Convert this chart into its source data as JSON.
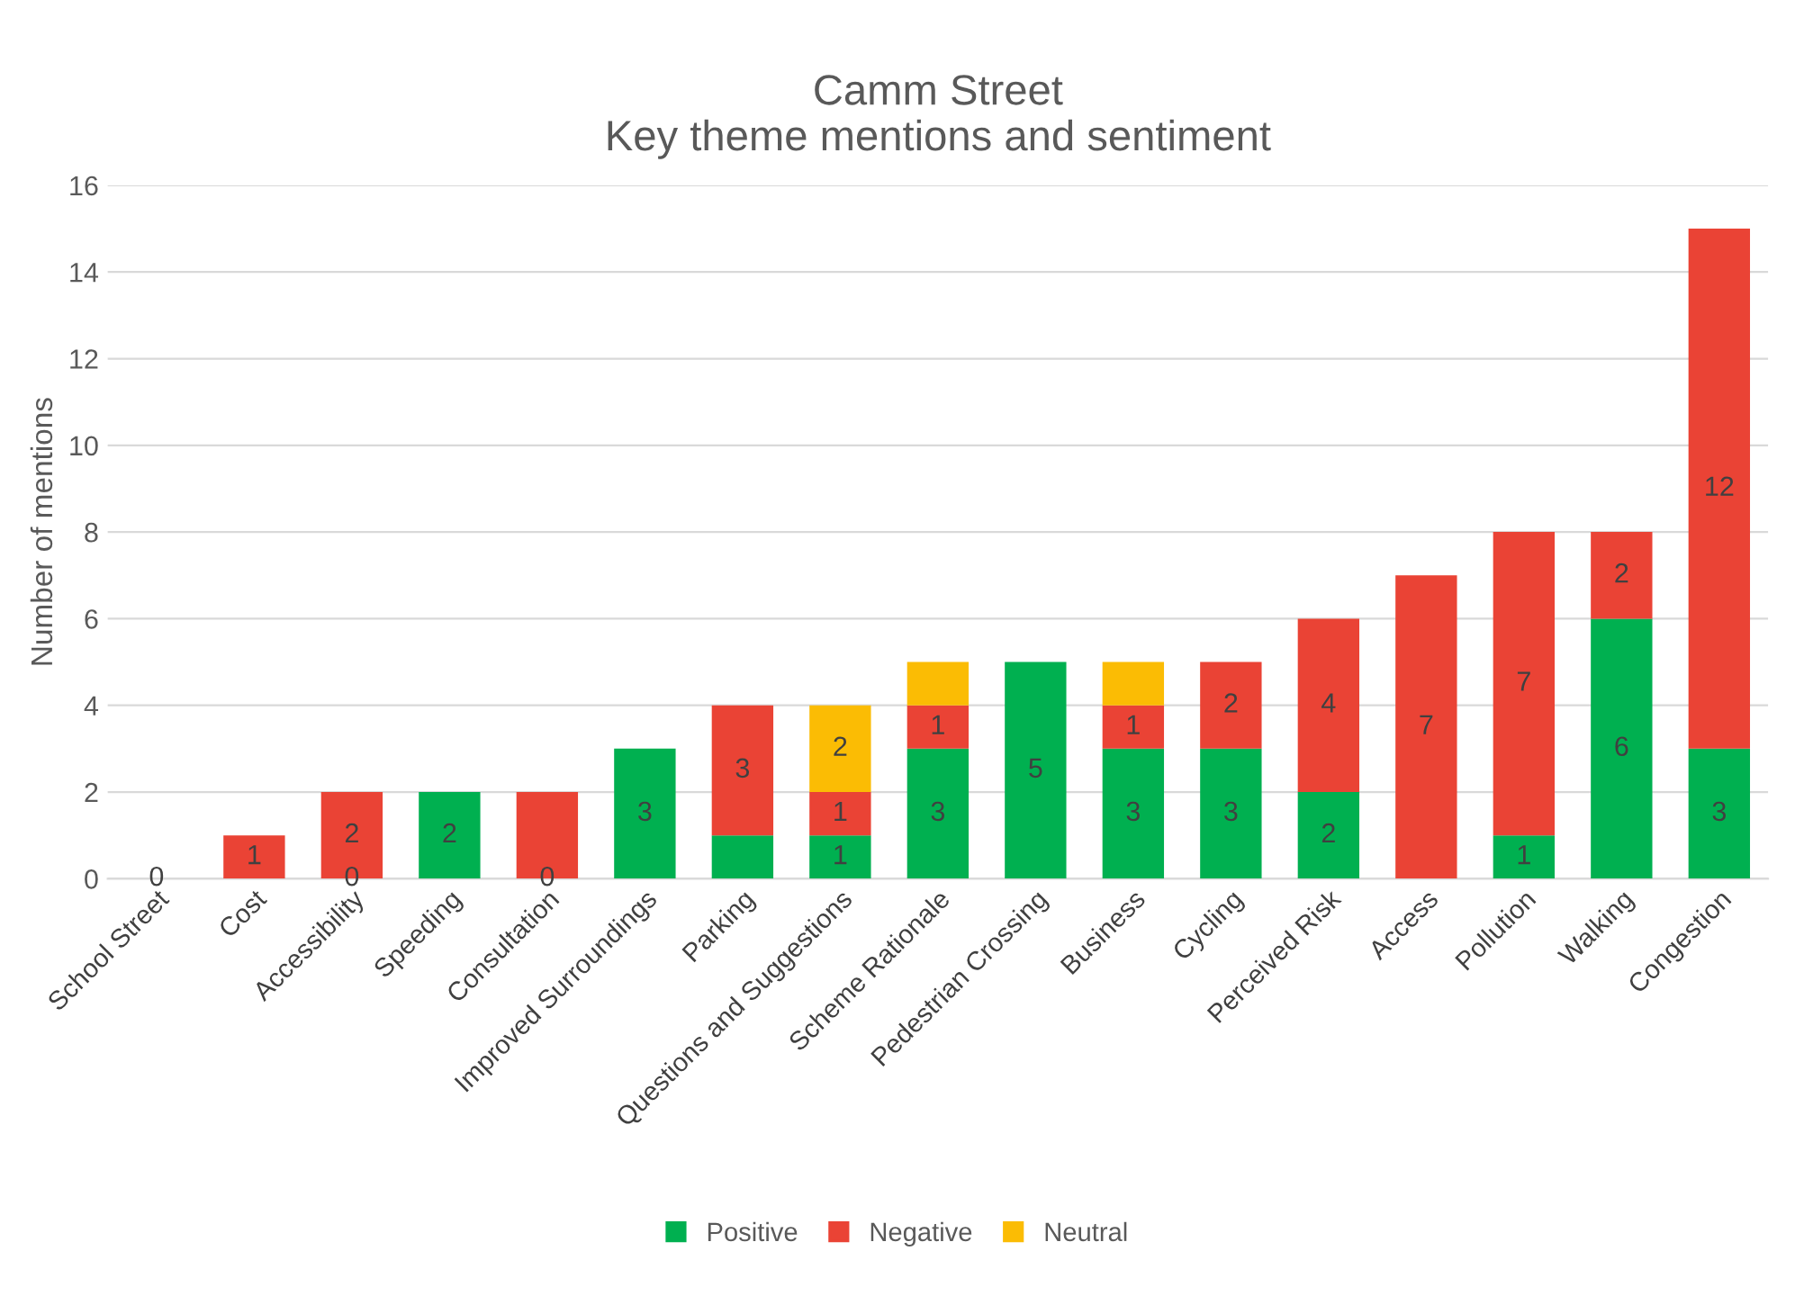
{
  "chart_data": {
    "type": "bar",
    "title": "Camm Street\nKey theme mentions and sentiment",
    "ylabel": "Number of mentions",
    "categories": [
      "School Street",
      "Cost",
      "Accessibility",
      "Speeding",
      "Consultation",
      "Improved Surroundings",
      "Parking",
      "Questions and Suggestions",
      "Scheme Rationale",
      "Pedestrian Crossing",
      "Business",
      "Cycling",
      "Perceived Risk",
      "Access",
      "Pollution",
      "Walking",
      "Congestion"
    ],
    "stacked": true,
    "ylim": [
      0,
      16
    ],
    "yticks": [
      0,
      2,
      4,
      6,
      8,
      10,
      12,
      14,
      16
    ],
    "grid": "y",
    "legend": "bottom",
    "series": [
      {
        "name": "Positive",
        "color": "#00b050",
        "values": [
          0,
          0,
          0,
          2,
          0,
          3,
          1,
          1,
          3,
          5,
          3,
          3,
          2,
          0,
          1,
          6,
          3
        ],
        "value_labels": [
          "0",
          null,
          "0",
          "2",
          "0",
          "3",
          null,
          "1",
          "3",
          "5",
          "3",
          "3",
          "2",
          null,
          "1",
          "6",
          "3"
        ]
      },
      {
        "name": "Negative",
        "color": "#ea4335",
        "values": [
          0,
          1,
          2,
          0,
          2,
          0,
          3,
          1,
          1,
          0,
          1,
          2,
          4,
          7,
          7,
          2,
          12
        ],
        "value_labels": [
          null,
          "1",
          "2",
          null,
          null,
          null,
          "3",
          "1",
          "1",
          null,
          "1",
          "2",
          "4",
          "7",
          "7",
          "2",
          "12"
        ]
      },
      {
        "name": "Neutral",
        "color": "#fbbc04",
        "values": [
          0,
          0,
          0,
          0,
          0,
          0,
          0,
          2,
          1,
          0,
          1,
          0,
          0,
          0,
          0,
          0,
          0
        ],
        "value_labels": [
          null,
          null,
          null,
          null,
          null,
          null,
          null,
          "2",
          null,
          null,
          null,
          null,
          null,
          null,
          null,
          null,
          null
        ]
      }
    ]
  }
}
